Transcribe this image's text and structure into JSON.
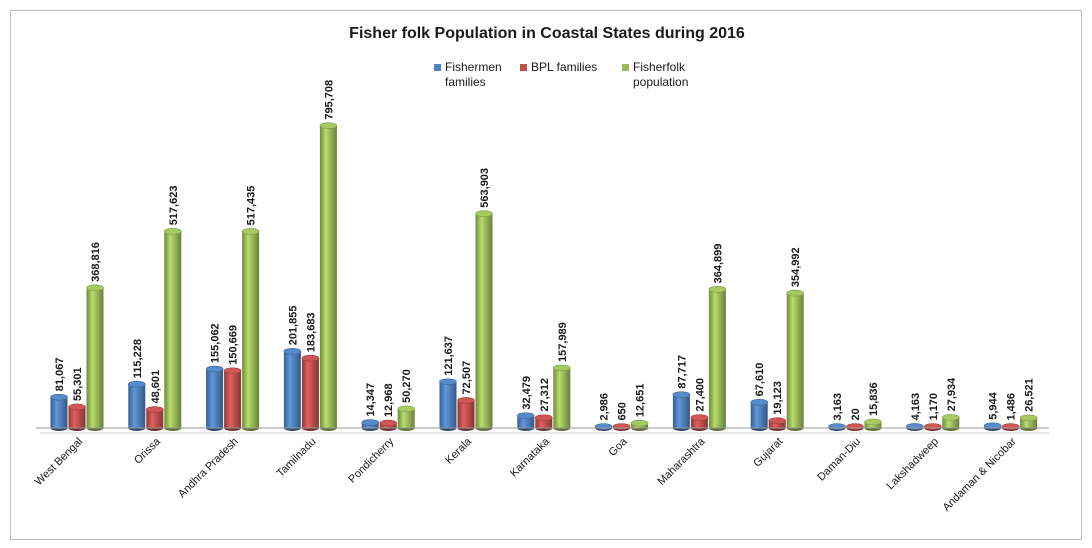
{
  "chart_data": {
    "type": "bar",
    "title": "Fisher folk Population in Coastal States during 2016",
    "categories": [
      "West Bengal",
      "Orissa",
      "Andhra Pradesh",
      "Tamilnadu",
      "Pondicherry",
      "Kerala",
      "Karnataka",
      "Goa",
      "Maharashtra",
      "Gujarat",
      "Daman-Diu",
      "Lakshadweep",
      "Andaman & Nicobar"
    ],
    "series": [
      {
        "name": "Fishermen families",
        "legend_lines": [
          "Fishermen",
          "families"
        ],
        "color": "#4f81bd",
        "values": [
          81067,
          115228,
          155062,
          201855,
          14347,
          121637,
          32479,
          2986,
          87717,
          67610,
          3163,
          4163,
          5944
        ],
        "labels": [
          "81,067",
          "115,228",
          "155,062",
          "201,855",
          "14,347",
          "121,637",
          "32,479",
          "2,986",
          "87,717",
          "67,610",
          "3,163",
          "4,163",
          "5,944"
        ]
      },
      {
        "name": "BPL families",
        "legend_lines": [
          "BPL families"
        ],
        "color": "#c0504d",
        "values": [
          55301,
          48601,
          150669,
          183683,
          12968,
          72507,
          27312,
          650,
          27400,
          19123,
          20,
          1170,
          1486
        ],
        "labels": [
          "55,301",
          "48,601",
          "150,669",
          "183,683",
          "12,968",
          "72,507",
          "27,312",
          "650",
          "27,400",
          "19,123",
          "20",
          "1,170",
          "1,486"
        ]
      },
      {
        "name": "Fisherfolk population",
        "legend_lines": [
          "Fisherfolk",
          "population"
        ],
        "color": "#9bbb59",
        "values": [
          368816,
          517623,
          517435,
          795708,
          50270,
          563903,
          157989,
          12651,
          364899,
          354992,
          15836,
          27934,
          26521
        ],
        "labels": [
          "368,816",
          "517,623",
          "517,435",
          "795,708",
          "50,270",
          "563,903",
          "157,989",
          "12,651",
          "364,899",
          "354,992",
          "15,836",
          "27,934",
          "26,521"
        ]
      }
    ],
    "xlabel": "",
    "ylabel": "",
    "ylim": [
      0,
      800000
    ],
    "grid": false,
    "legend_position": "top-center"
  }
}
